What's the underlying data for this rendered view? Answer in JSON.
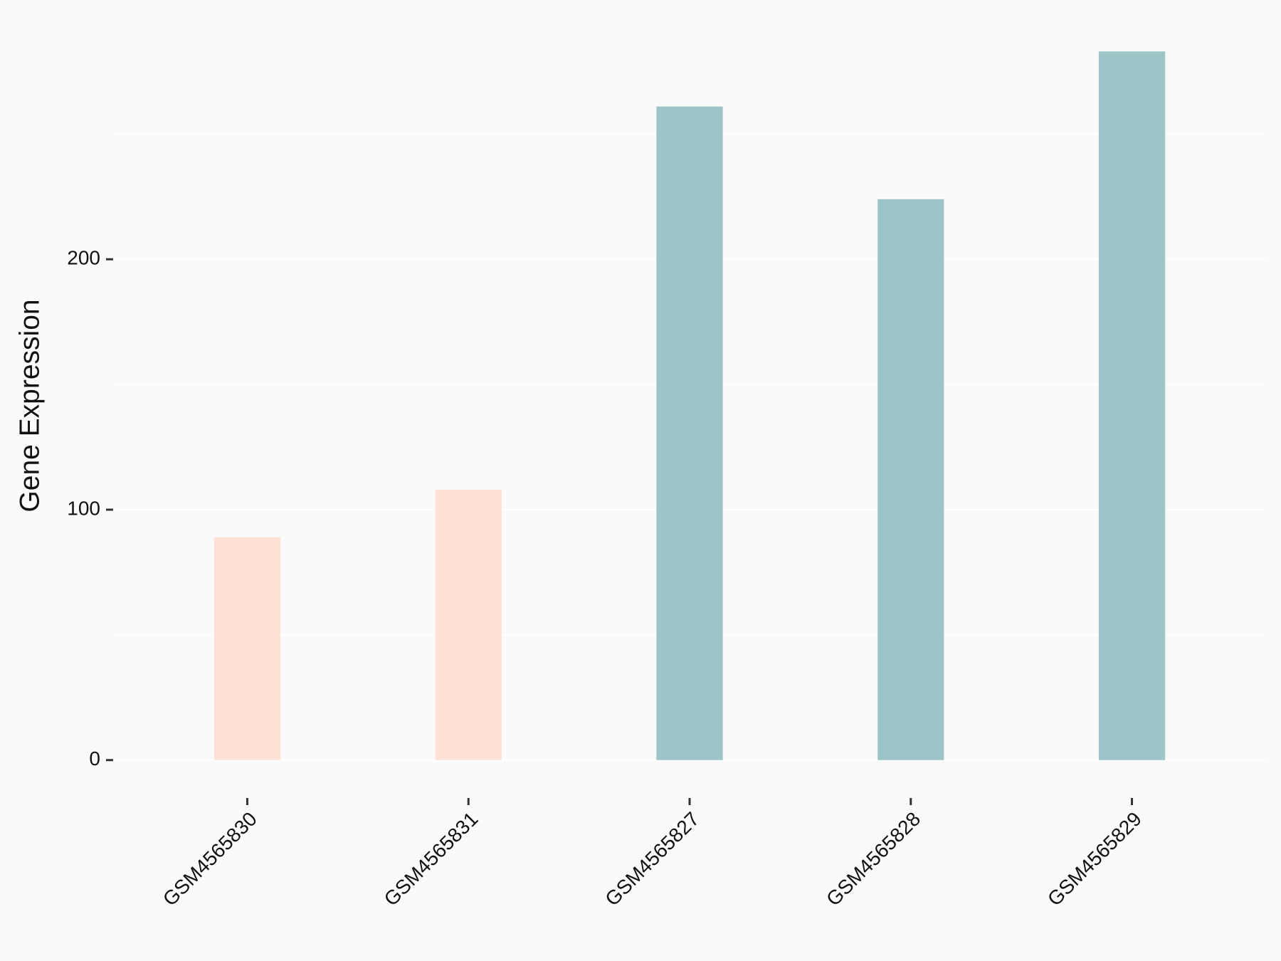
{
  "chart_data": {
    "type": "bar",
    "y_label": "Gene Expression",
    "categories": [
      "GSM4565830",
      "GSM4565831",
      "GSM4565827",
      "GSM4565828",
      "GSM4565829"
    ],
    "values": [
      89,
      108,
      261,
      224,
      283
    ],
    "colors": [
      "#ffe1d6",
      "#ffe1d6",
      "#9dc4c7",
      "#9dc4c7",
      "#9dc4c7"
    ],
    "ylim": [
      -14,
      297
    ],
    "yticks": [
      0,
      100,
      200
    ],
    "minor_gridlines": [
      50,
      150,
      250
    ],
    "grid": true
  }
}
